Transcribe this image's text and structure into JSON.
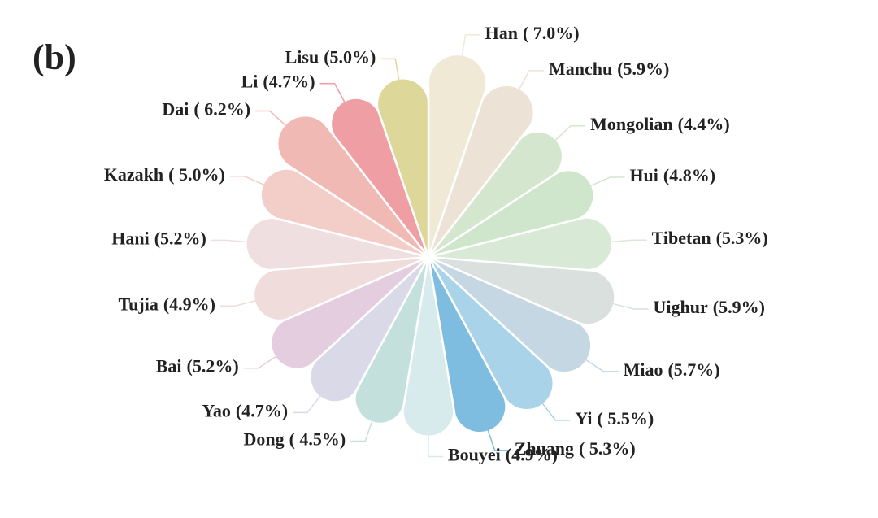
{
  "chart_data": {
    "type": "petal",
    "panel_label": "(b)",
    "categories": [
      "Han",
      "Manchu",
      "Mongolian",
      "Hui",
      "Tibetan",
      "Uighur",
      "Miao",
      "Yi",
      "Zhuang",
      "Bouyei",
      "Dong",
      "Yao",
      "Bai",
      "Tujia",
      "Hani",
      "Kazakh",
      "Dai",
      "Li",
      "Lisu"
    ],
    "values": [
      7.0,
      5.9,
      4.4,
      4.8,
      5.3,
      5.9,
      5.7,
      5.5,
      5.3,
      4.9,
      4.5,
      4.7,
      5.2,
      4.9,
      5.2,
      5.0,
      6.2,
      4.7,
      5.0
    ],
    "value_labels": [
      "( 7.0%)",
      "(5.9%)",
      "(4.4%)",
      "(4.8%)",
      "(5.3%)",
      "(5.9%)",
      "(5.7%)",
      "( 5.5%)",
      "( 5.3%)",
      "(4.9%)",
      "( 4.5%)",
      "(4.7%)",
      "(5.2%)",
      "(4.9%)",
      "(5.2%)",
      "( 5.0%)",
      "( 6.2%)",
      "(4.7%)",
      "(5.0%)"
    ],
    "colors": [
      "#efe9d6",
      "#ece3d6",
      "#d5e6cf",
      "#cfe5cc",
      "#d8ead6",
      "#d9e0dd",
      "#c4d7e2",
      "#a9d3e8",
      "#7fbde0",
      "#d7eaec",
      "#c4e0dd",
      "#d9d9e8",
      "#e5cde0",
      "#f1dcdc",
      "#efdfe0",
      "#f3cdc8",
      "#f1b9b4",
      "#ef9fa4",
      "#ddd79a"
    ]
  }
}
